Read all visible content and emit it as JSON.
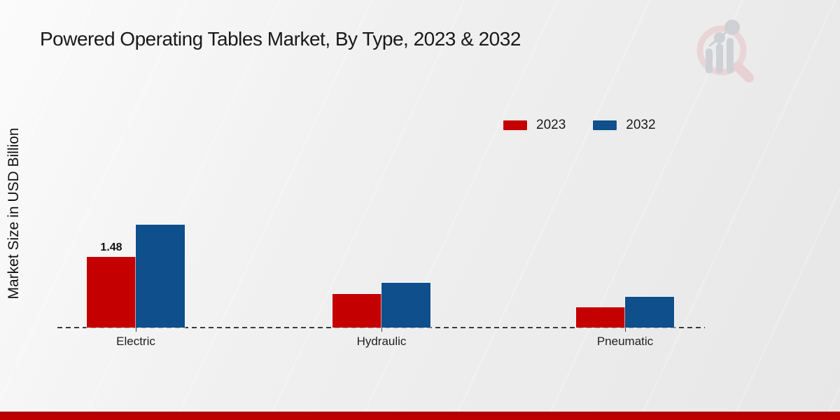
{
  "title": "Powered Operating Tables Market, By Type, 2023 & 2032",
  "ylabel": "Market Size in USD Billion",
  "legend": {
    "items": [
      {
        "label": "2023",
        "color": "#c40000"
      },
      {
        "label": "2032",
        "color": "#0e4f8c"
      }
    ]
  },
  "chart_data": {
    "type": "bar",
    "categories": [
      "Electric",
      "Hydraulic",
      "Pneumatic"
    ],
    "series": [
      {
        "name": "2023",
        "color": "#c40000",
        "values": [
          1.48,
          0.7,
          0.43
        ],
        "value_labels": [
          "1.48",
          "",
          ""
        ]
      },
      {
        "name": "2032",
        "color": "#0e4f8c",
        "values": [
          2.15,
          0.94,
          0.65
        ],
        "value_labels": [
          "",
          "",
          ""
        ]
      }
    ],
    "title": "Powered Operating Tables Market, By Type, 2023 & 2032",
    "xlabel": "",
    "ylabel": "Market Size in USD Billion",
    "ylim": [
      0,
      2.5
    ],
    "grid": false,
    "legend_position": "upper right",
    "baseline_style": "dashed",
    "unit": "USD Billion"
  },
  "colors": {
    "accent_red": "#c40000",
    "accent_blue": "#0e4f8c",
    "baseline": "#3c3c3c",
    "bottom_strip": "#bb0000"
  },
  "watermark": {
    "name": "market-research-logo",
    "ring": "#e9d2d4",
    "bars": "#caccd1",
    "dots": "#caccd1"
  }
}
